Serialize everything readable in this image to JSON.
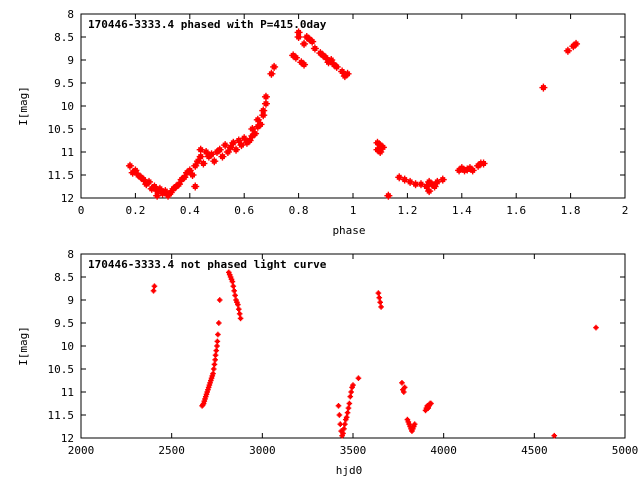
{
  "chart_data": [
    {
      "type": "scatter",
      "title": "170446-3333.4 phased with P=415.0day",
      "xlabel": "phase",
      "ylabel": "I[mag]",
      "xlim": [
        0,
        2
      ],
      "ylim": [
        8,
        12
      ],
      "y_inverted": true,
      "xticks": [
        "0",
        "0.2",
        "0.4",
        "0.6",
        "0.8",
        "1",
        "1.2",
        "1.4",
        "1.6",
        "1.8",
        "2"
      ],
      "yticks": [
        "8",
        "8.5",
        "9",
        "9.5",
        "10",
        "10.5",
        "11",
        "11.5",
        "12"
      ],
      "grid": false,
      "color": "#ff0000",
      "series": [
        {
          "points": [
            [
              0.18,
              11.3
            ],
            [
              0.19,
              11.45
            ],
            [
              0.2,
              11.4
            ],
            [
              0.21,
              11.5
            ],
            [
              0.22,
              11.55
            ],
            [
              0.23,
              11.6
            ],
            [
              0.24,
              11.7
            ],
            [
              0.25,
              11.65
            ],
            [
              0.26,
              11.8
            ],
            [
              0.27,
              11.75
            ],
            [
              0.28,
              11.85
            ],
            [
              0.28,
              11.95
            ],
            [
              0.29,
              11.8
            ],
            [
              0.3,
              11.9
            ],
            [
              0.31,
              11.85
            ],
            [
              0.32,
              11.95
            ],
            [
              0.33,
              11.88
            ],
            [
              0.34,
              11.8
            ],
            [
              0.35,
              11.75
            ],
            [
              0.36,
              11.7
            ],
            [
              0.37,
              11.6
            ],
            [
              0.38,
              11.55
            ],
            [
              0.39,
              11.45
            ],
            [
              0.4,
              11.4
            ],
            [
              0.41,
              11.5
            ],
            [
              0.42,
              11.3
            ],
            [
              0.42,
              11.75
            ],
            [
              0.43,
              11.2
            ],
            [
              0.44,
              11.1
            ],
            [
              0.44,
              10.95
            ],
            [
              0.45,
              11.25
            ],
            [
              0.46,
              11.0
            ],
            [
              0.47,
              11.1
            ],
            [
              0.48,
              11.05
            ],
            [
              0.49,
              11.2
            ],
            [
              0.5,
              11.0
            ],
            [
              0.51,
              10.95
            ],
            [
              0.52,
              11.1
            ],
            [
              0.53,
              10.85
            ],
            [
              0.54,
              11.0
            ],
            [
              0.55,
              10.9
            ],
            [
              0.56,
              10.8
            ],
            [
              0.57,
              10.95
            ],
            [
              0.58,
              10.75
            ],
            [
              0.59,
              10.85
            ],
            [
              0.6,
              10.7
            ],
            [
              0.61,
              10.8
            ],
            [
              0.62,
              10.75
            ],
            [
              0.63,
              10.65
            ],
            [
              0.63,
              10.5
            ],
            [
              0.64,
              10.6
            ],
            [
              0.65,
              10.45
            ],
            [
              0.65,
              10.3
            ],
            [
              0.66,
              10.4
            ],
            [
              0.67,
              10.2
            ],
            [
              0.67,
              10.1
            ],
            [
              0.68,
              9.95
            ],
            [
              0.68,
              9.8
            ],
            [
              0.7,
              9.3
            ],
            [
              0.71,
              9.15
            ],
            [
              0.78,
              8.9
            ],
            [
              0.79,
              8.95
            ],
            [
              0.8,
              8.4
            ],
            [
              0.8,
              8.5
            ],
            [
              0.81,
              9.05
            ],
            [
              0.82,
              9.1
            ],
            [
              0.82,
              8.65
            ],
            [
              0.83,
              8.5
            ],
            [
              0.84,
              8.55
            ],
            [
              0.85,
              8.6
            ],
            [
              0.86,
              8.75
            ],
            [
              0.88,
              8.85
            ],
            [
              0.89,
              8.9
            ],
            [
              0.9,
              8.95
            ],
            [
              0.91,
              9.05
            ],
            [
              0.92,
              9.0
            ],
            [
              0.93,
              9.1
            ],
            [
              0.94,
              9.15
            ],
            [
              0.96,
              9.25
            ],
            [
              0.97,
              9.35
            ],
            [
              0.98,
              9.3
            ],
            [
              1.09,
              10.8
            ],
            [
              1.09,
              10.95
            ],
            [
              1.1,
              10.85
            ],
            [
              1.1,
              11.0
            ],
            [
              1.11,
              10.9
            ],
            [
              1.13,
              11.95
            ],
            [
              1.17,
              11.55
            ],
            [
              1.19,
              11.6
            ],
            [
              1.21,
              11.65
            ],
            [
              1.23,
              11.7
            ],
            [
              1.25,
              11.7
            ],
            [
              1.27,
              11.75
            ],
            [
              1.28,
              11.85
            ],
            [
              1.28,
              11.65
            ],
            [
              1.29,
              11.7
            ],
            [
              1.3,
              11.75
            ],
            [
              1.31,
              11.65
            ],
            [
              1.33,
              11.6
            ],
            [
              1.39,
              11.4
            ],
            [
              1.4,
              11.35
            ],
            [
              1.41,
              11.4
            ],
            [
              1.42,
              11.38
            ],
            [
              1.43,
              11.35
            ],
            [
              1.44,
              11.4
            ],
            [
              1.46,
              11.3
            ],
            [
              1.47,
              11.25
            ],
            [
              1.48,
              11.25
            ],
            [
              1.7,
              9.6
            ],
            [
              1.79,
              8.8
            ],
            [
              1.81,
              8.7
            ],
            [
              1.82,
              8.65
            ]
          ]
        }
      ]
    },
    {
      "type": "scatter",
      "title": "170446-3333.4 not phased light curve",
      "xlabel": "hjd0",
      "ylabel": "I[mag]",
      "xlim": [
        2000,
        5000
      ],
      "ylim": [
        8,
        12
      ],
      "y_inverted": true,
      "xticks": [
        "2000",
        "2500",
        "3000",
        "3500",
        "4000",
        "4500",
        "5000"
      ],
      "yticks": [
        "8",
        "8.5",
        "9",
        "9.5",
        "10",
        "10.5",
        "11",
        "11.5",
        "12"
      ],
      "grid": false,
      "color": "#ff0000",
      "series": [
        {
          "points": [
            [
              2400,
              8.8
            ],
            [
              2405,
              8.7
            ],
            [
              2668,
              11.3
            ],
            [
              2672,
              11.28
            ],
            [
              2676,
              11.25
            ],
            [
              2680,
              11.2
            ],
            [
              2684,
              11.15
            ],
            [
              2688,
              11.1
            ],
            [
              2692,
              11.05
            ],
            [
              2696,
              11.0
            ],
            [
              2700,
              10.95
            ],
            [
              2704,
              10.9
            ],
            [
              2708,
              10.85
            ],
            [
              2712,
              10.8
            ],
            [
              2716,
              10.75
            ],
            [
              2720,
              10.7
            ],
            [
              2724,
              10.65
            ],
            [
              2728,
              10.6
            ],
            [
              2732,
              10.5
            ],
            [
              2736,
              10.4
            ],
            [
              2740,
              10.3
            ],
            [
              2742,
              10.2
            ],
            [
              2746,
              10.1
            ],
            [
              2750,
              10.0
            ],
            [
              2752,
              9.9
            ],
            [
              2755,
              9.75
            ],
            [
              2760,
              9.5
            ],
            [
              2765,
              9.0
            ],
            [
              2815,
              8.4
            ],
            [
              2820,
              8.45
            ],
            [
              2825,
              8.5
            ],
            [
              2830,
              8.55
            ],
            [
              2835,
              8.6
            ],
            [
              2840,
              8.7
            ],
            [
              2845,
              8.8
            ],
            [
              2850,
              8.9
            ],
            [
              2855,
              9.0
            ],
            [
              2860,
              9.05
            ],
            [
              2865,
              9.1
            ],
            [
              2870,
              9.2
            ],
            [
              2875,
              9.3
            ],
            [
              2880,
              9.4
            ],
            [
              3420,
              11.3
            ],
            [
              3425,
              11.5
            ],
            [
              3430,
              11.7
            ],
            [
              3435,
              11.85
            ],
            [
              3440,
              11.95
            ],
            [
              3445,
              11.9
            ],
            [
              3450,
              11.8
            ],
            [
              3455,
              11.7
            ],
            [
              3460,
              11.6
            ],
            [
              3465,
              11.55
            ],
            [
              3470,
              11.45
            ],
            [
              3475,
              11.35
            ],
            [
              3480,
              11.25
            ],
            [
              3485,
              11.1
            ],
            [
              3490,
              11.0
            ],
            [
              3495,
              10.9
            ],
            [
              3500,
              10.85
            ],
            [
              3530,
              10.7
            ],
            [
              3640,
              8.85
            ],
            [
              3645,
              8.95
            ],
            [
              3650,
              9.05
            ],
            [
              3655,
              9.15
            ],
            [
              3770,
              10.8
            ],
            [
              3775,
              10.95
            ],
            [
              3780,
              11.0
            ],
            [
              3785,
              10.9
            ],
            [
              3800,
              11.6
            ],
            [
              3805,
              11.65
            ],
            [
              3810,
              11.7
            ],
            [
              3815,
              11.75
            ],
            [
              3820,
              11.8
            ],
            [
              3825,
              11.85
            ],
            [
              3830,
              11.8
            ],
            [
              3835,
              11.75
            ],
            [
              3840,
              11.7
            ],
            [
              3900,
              11.4
            ],
            [
              3905,
              11.35
            ],
            [
              3910,
              11.3
            ],
            [
              3915,
              11.35
            ],
            [
              3920,
              11.3
            ],
            [
              3925,
              11.25
            ],
            [
              3930,
              11.25
            ],
            [
              4610,
              11.95
            ],
            [
              4840,
              9.6
            ]
          ]
        }
      ]
    }
  ]
}
